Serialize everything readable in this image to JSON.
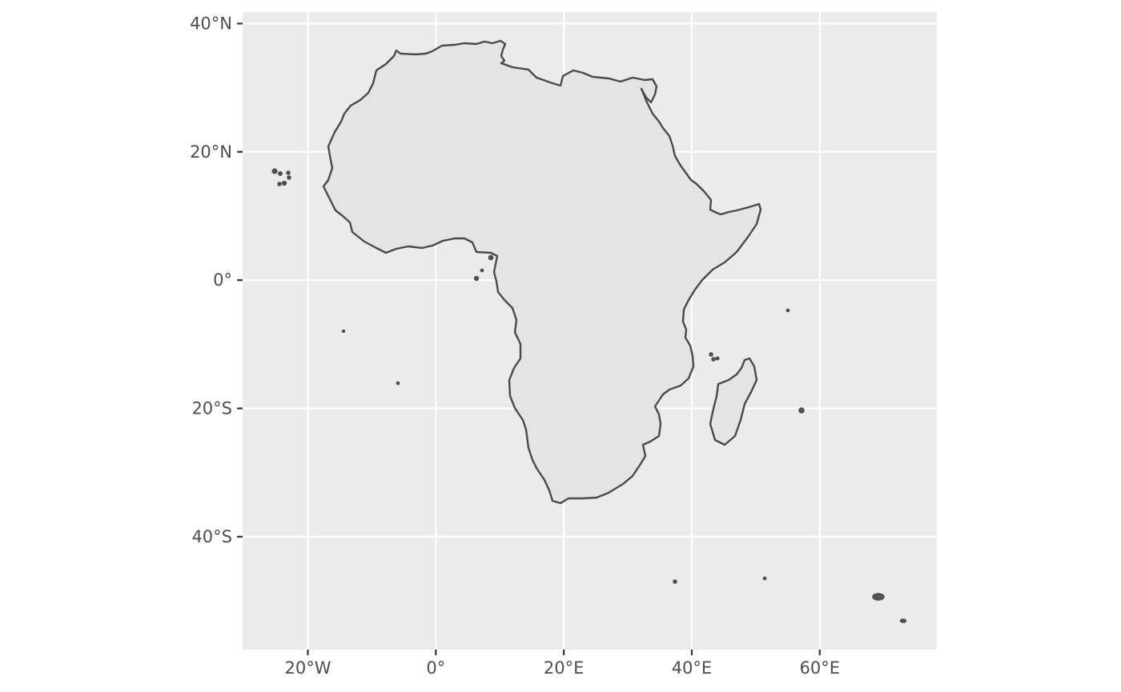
{
  "map": {
    "panel_color": "#ebebeb",
    "land_fill": "#e4e4e4",
    "outline_color": "#4a4a4a",
    "grid_color": "#ffffff",
    "x_ticks": [
      {
        "lon": -20,
        "label": "20°W"
      },
      {
        "lon": 0,
        "label": "0°"
      },
      {
        "lon": 20,
        "label": "20°E"
      },
      {
        "lon": 40,
        "label": "40°E"
      },
      {
        "lon": 60,
        "label": "60°E"
      }
    ],
    "y_ticks": [
      {
        "lat": 40,
        "label": "40°N"
      },
      {
        "lat": 20,
        "label": "20°N"
      },
      {
        "lat": 0,
        "label": "0°"
      },
      {
        "lat": -20,
        "label": "20°S"
      },
      {
        "lat": -40,
        "label": "40°S"
      }
    ],
    "lon_range": [
      -30.2,
      78.3
    ],
    "lat_range": [
      -57.6,
      41.8
    ]
  }
}
